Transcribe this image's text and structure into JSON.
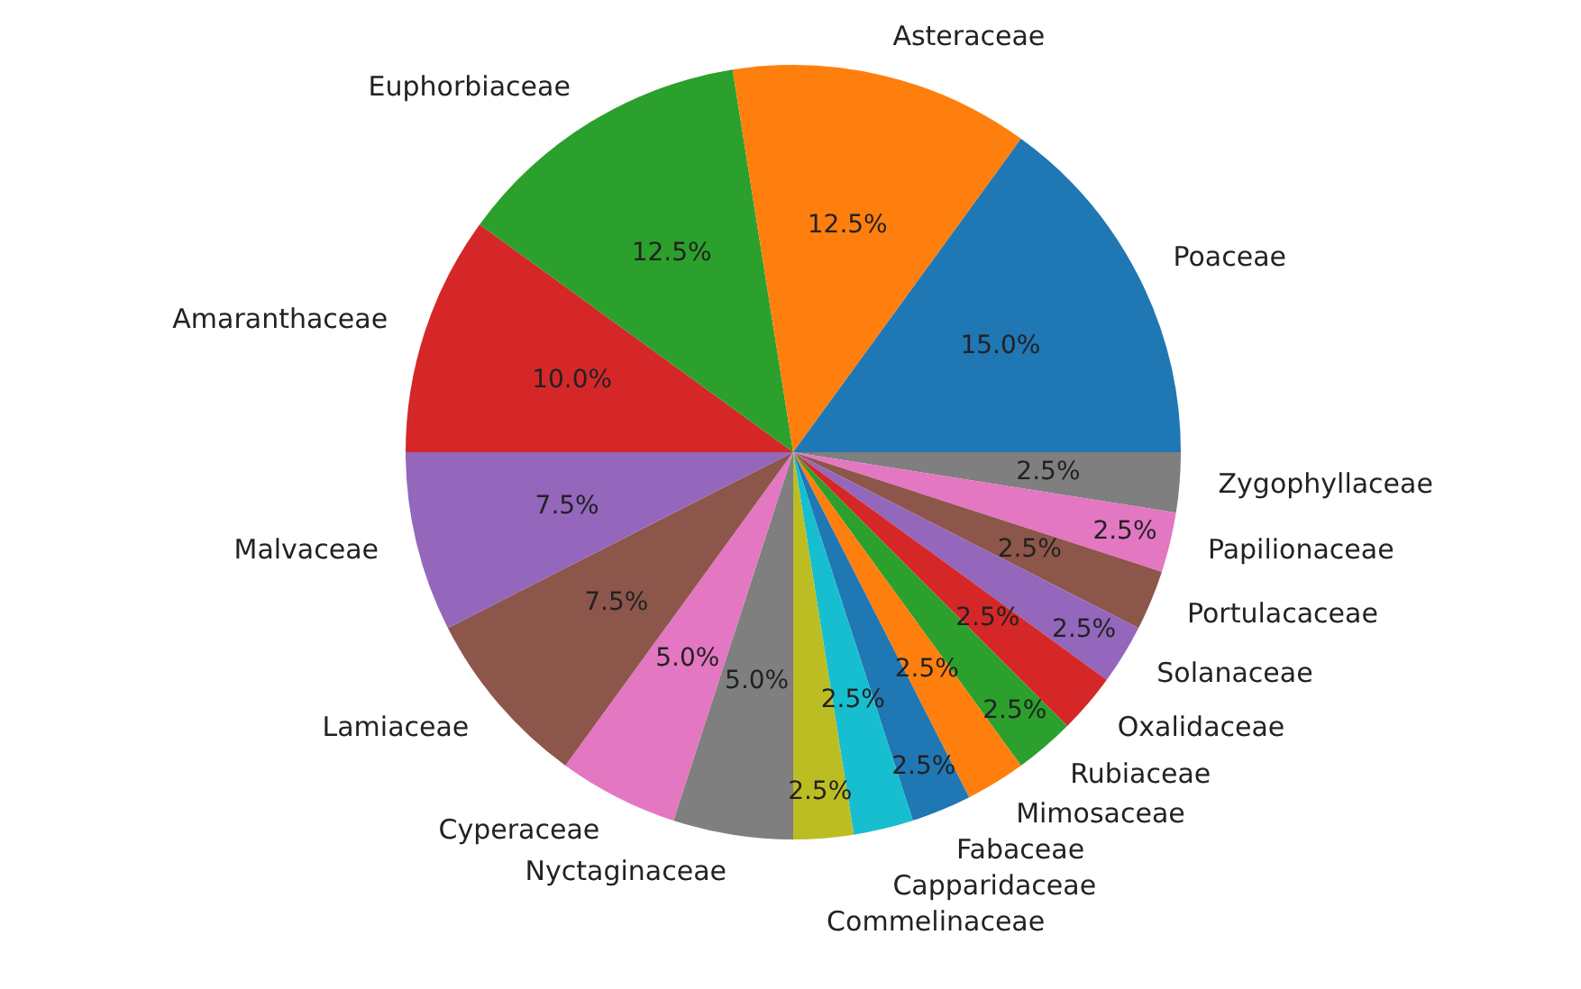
{
  "chart_data": {
    "type": "pie",
    "categories": [
      "Poaceae",
      "Asteraceae",
      "Euphorbiaceae",
      "Amaranthaceae",
      "Malvaceae",
      "Lamiaceae",
      "Cyperaceae",
      "Nyctaginaceae",
      "Commelinaceae",
      "Capparidaceae",
      "Fabaceae",
      "Mimosaceae",
      "Rubiaceae",
      "Oxalidaceae",
      "Solanaceae",
      "Portulacaceae",
      "Papilionaceae",
      "Zygophyllaceae"
    ],
    "values": [
      15,
      12.5,
      12.5,
      10,
      7.5,
      7.5,
      5,
      5,
      2.5,
      2.5,
      2.5,
      2.5,
      2.5,
      2.5,
      2.5,
      2.5,
      2.5,
      2.5
    ],
    "value_labels": [
      "15.0%",
      "12.5%",
      "12.5%",
      "10.0%",
      "7.5%",
      "7.5%",
      "5.0%",
      "5.0%",
      "2.5%",
      "2.5%",
      "2.5%",
      "2.5%",
      "2.5%",
      "2.5%",
      "2.5%",
      "2.5%",
      "2.5%",
      "2.5%"
    ],
    "colors": [
      "#1f77b4",
      "#ff7f0e",
      "#2ca02c",
      "#d62728",
      "#9467bd",
      "#8c564b",
      "#e377c2",
      "#7f7f7f",
      "#bcbd22",
      "#17becf",
      "#1f77b4",
      "#ff7f0e",
      "#2ca02c",
      "#d62728",
      "#9467bd",
      "#8c564b",
      "#e377c2",
      "#7f7f7f"
    ],
    "legend": false
  }
}
